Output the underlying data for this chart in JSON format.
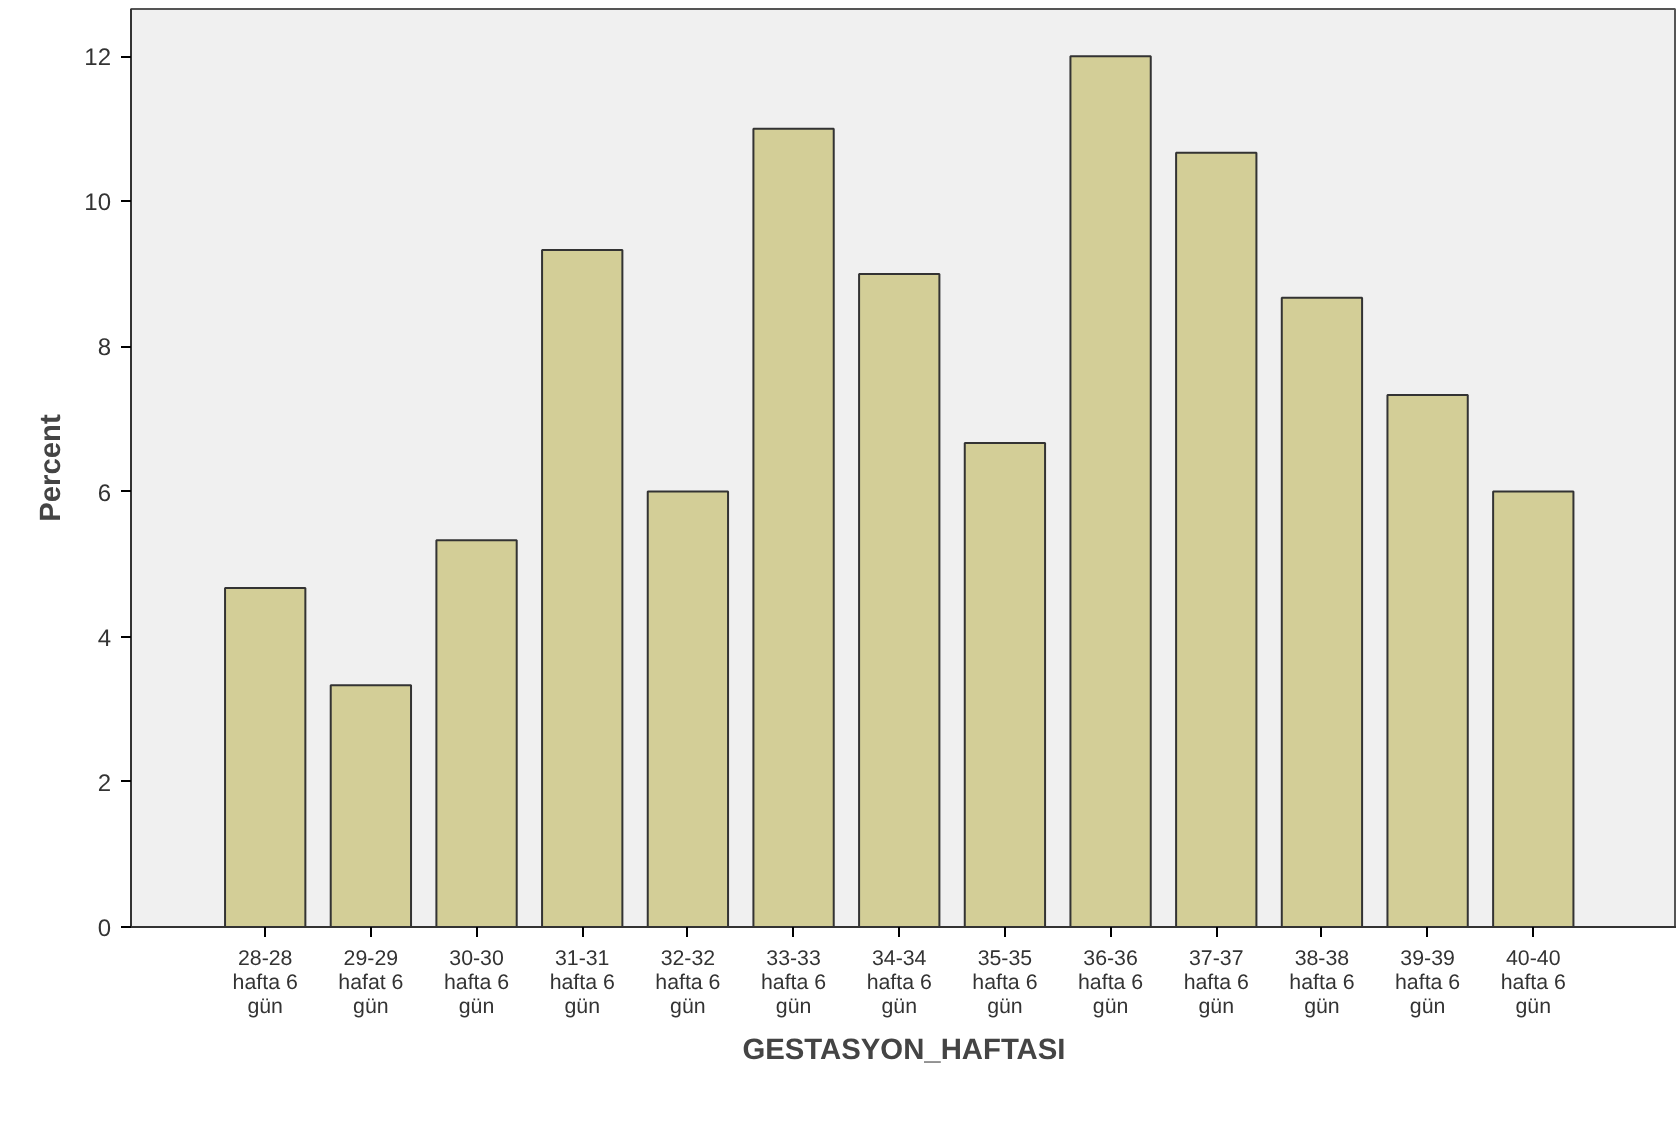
{
  "chart_data": {
    "type": "bar",
    "xlabel": "GESTASYON_HAFTASI",
    "ylabel": "Percent",
    "categories": [
      "28-28\nhafta 6\ngün",
      "29-29\nhafat 6\ngün",
      "30-30\nhafta 6\ngün",
      "31-31\nhafta 6\ngün",
      "32-32\nhafta 6\ngün",
      "33-33\nhafta 6\ngün",
      "34-34\nhafta 6\ngün",
      "35-35\nhafta 6\ngün",
      "36-36\nhafta 6\ngün",
      "37-37\nhafta 6\ngün",
      "38-38\nhafta 6\ngün",
      "39-39\nhafta 6\ngün",
      "40-40\nhafta 6\ngün"
    ],
    "values": [
      4.67,
      3.33,
      5.33,
      9.33,
      6.0,
      11.0,
      9.0,
      6.67,
      12.0,
      10.67,
      8.67,
      7.33,
      6.0
    ],
    "color": "#d3ce97",
    "ylim": [
      0,
      12.65
    ],
    "yticks": [
      0,
      2,
      4,
      6,
      8,
      10,
      12
    ],
    "grid": false
  }
}
